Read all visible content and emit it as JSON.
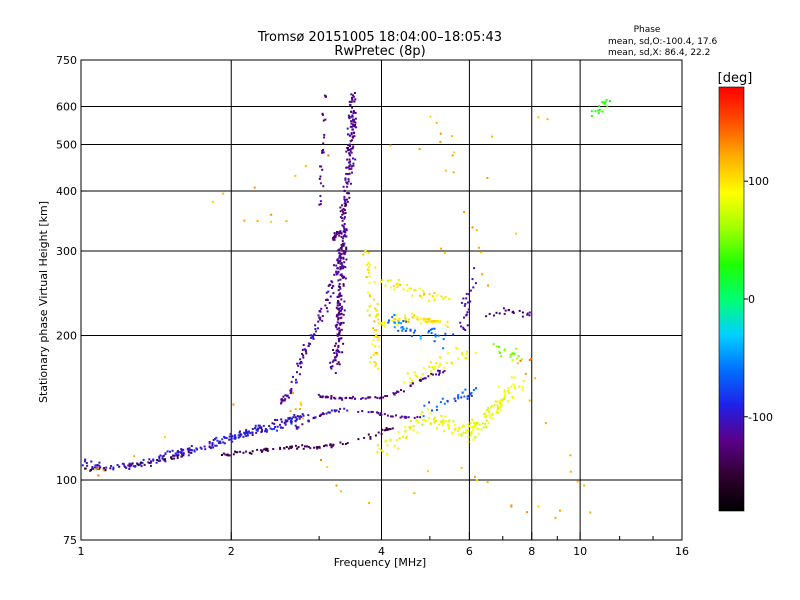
{
  "chart_data": {
    "type": "scatter",
    "title": "Tromsø 20151005 18:04:00–18:05:43",
    "subtitle": "RwPretec (8p)",
    "xlabel": "Frequency [MHz]",
    "ylabel": "Stationary phase Virtual Height [km]",
    "x_scale": "log",
    "y_scale": "log",
    "xlim": [
      1,
      16
    ],
    "ylim": [
      75,
      750
    ],
    "x_ticks": [
      1,
      2,
      4,
      6,
      8,
      10,
      16
    ],
    "x_minor": [
      3,
      5,
      7,
      9,
      12,
      14
    ],
    "x_gridlines": [
      2,
      4,
      6,
      8,
      10
    ],
    "y_ticks": [
      75,
      100,
      200,
      300,
      400,
      500,
      600,
      750
    ],
    "grid": true,
    "phase_info": {
      "title": "Phase",
      "line1": "mean, sd,O:-100.4, 17.6",
      "line2": "mean, sd,X:  86.4, 22.2"
    },
    "colorbar": {
      "label": "[deg]",
      "range": [
        -180,
        180
      ],
      "ticks": [
        100,
        0,
        -100
      ],
      "colors": [
        "#000000",
        "#300030",
        "#5a0088",
        "#2020e8",
        "#0070ff",
        "#00d0ff",
        "#00ff70",
        "#20ff00",
        "#a0ff00",
        "#ffff00",
        "#ffb000",
        "#ff5000",
        "#ff0000"
      ]
    },
    "series": [
      {
        "trace": [
          [
            1.0,
            110
          ],
          [
            1.1,
            106
          ],
          [
            1.2,
            106
          ],
          [
            1.3,
            108
          ],
          [
            1.4,
            110
          ],
          [
            1.5,
            113
          ],
          [
            1.6,
            114
          ],
          [
            1.7,
            116
          ],
          [
            1.8,
            118
          ],
          [
            1.9,
            120
          ],
          [
            2.0,
            122
          ],
          [
            2.1,
            125
          ],
          [
            2.2,
            127
          ],
          [
            2.4,
            130
          ],
          [
            2.6,
            133
          ],
          [
            2.8,
            136
          ]
        ],
        "phase": -100,
        "spread": 0.03,
        "count": 190
      },
      {
        "trace": [
          [
            1.0,
            106
          ],
          [
            1.05,
            104
          ],
          [
            1.1,
            106
          ],
          [
            1.2,
            106
          ],
          [
            1.3,
            108
          ],
          [
            1.5,
            111
          ],
          [
            1.7,
            114
          ]
        ],
        "phase": -140,
        "spread": 0.02,
        "count": 40
      },
      {
        "trace": [
          [
            1.9,
            113
          ],
          [
            2.1,
            114
          ],
          [
            2.3,
            115
          ],
          [
            2.6,
            117
          ],
          [
            2.8,
            117
          ],
          [
            3.0,
            117
          ],
          [
            3.2,
            118
          ],
          [
            3.5,
            120
          ],
          [
            3.8,
            123
          ],
          [
            4.0,
            126
          ],
          [
            4.2,
            128
          ]
        ],
        "phase": -140,
        "spread": 0.015,
        "count": 90
      },
      {
        "trace": [
          [
            1.8,
            120
          ],
          [
            2.0,
            123
          ],
          [
            2.3,
            126
          ],
          [
            2.6,
            130
          ],
          [
            2.8,
            135
          ]
        ],
        "phase": -95,
        "spread": 0.02,
        "count": 50
      },
      {
        "trace": [
          [
            2.7,
            128
          ],
          [
            2.9,
            134
          ],
          [
            3.1,
            138
          ],
          [
            3.3,
            140
          ],
          [
            3.6,
            139
          ],
          [
            3.9,
            138
          ],
          [
            4.2,
            136
          ],
          [
            4.5,
            135
          ],
          [
            4.8,
            135
          ]
        ],
        "phase": -110,
        "spread": 0.01,
        "count": 60
      },
      {
        "trace": [
          [
            2.5,
            145
          ],
          [
            2.6,
            150
          ],
          [
            2.7,
            165
          ],
          [
            2.8,
            185
          ],
          [
            2.9,
            200
          ],
          [
            3.0,
            215
          ],
          [
            3.1,
            235
          ],
          [
            3.2,
            260
          ],
          [
            3.3,
            300
          ]
        ],
        "phase": -110,
        "spread": 0.025,
        "count": 110
      },
      {
        "trace": [
          [
            3.0,
            150
          ],
          [
            3.1,
            149
          ],
          [
            3.3,
            148
          ],
          [
            3.6,
            148
          ],
          [
            3.9,
            148
          ],
          [
            4.2,
            150
          ],
          [
            4.6,
            158
          ],
          [
            5.0,
            165
          ],
          [
            5.5,
            170
          ]
        ],
        "phase": -120,
        "spread": 0.012,
        "count": 70
      },
      {
        "trace": [
          [
            3.2,
            170
          ],
          [
            3.3,
            200
          ],
          [
            3.3,
            250
          ],
          [
            3.35,
            300
          ],
          [
            3.35,
            350
          ],
          [
            3.4,
            400
          ],
          [
            3.45,
            450
          ],
          [
            3.45,
            500
          ],
          [
            3.5,
            550
          ],
          [
            3.5,
            600
          ],
          [
            3.5,
            650
          ]
        ],
        "phase": -120,
        "spread": 0.03,
        "count": 330
      },
      {
        "trace": [
          [
            3.3,
            330
          ],
          [
            3.2,
            318
          ],
          [
            3.25,
            330
          ]
        ],
        "phase": -125,
        "spread": 0.01,
        "count": 18
      },
      {
        "trace": [
          [
            3.0,
            370
          ],
          [
            3.05,
            450
          ],
          [
            3.05,
            550
          ],
          [
            3.1,
            650
          ]
        ],
        "phase": -120,
        "spread": 0.02,
        "count": 25
      },
      {
        "trace": [
          [
            3.7,
            300
          ],
          [
            3.8,
            280
          ],
          [
            3.8,
            250
          ],
          [
            3.9,
            220
          ],
          [
            3.9,
            185
          ],
          [
            3.9,
            160
          ]
        ],
        "phase": 100,
        "spread": 0.04,
        "count": 60
      },
      {
        "trace": [
          [
            4.0,
            260
          ],
          [
            4.3,
            255
          ],
          [
            4.6,
            250
          ],
          [
            5.0,
            240
          ],
          [
            5.4,
            240
          ]
        ],
        "phase": 95,
        "spread": 0.04,
        "count": 45
      },
      {
        "trace": [
          [
            4.0,
            210
          ],
          [
            4.5,
            218
          ],
          [
            5.0,
            215
          ],
          [
            5.5,
            212
          ]
        ],
        "phase": 100,
        "spread": 0.03,
        "count": 60
      },
      {
        "trace": [
          [
            4.0,
            115
          ],
          [
            4.5,
            128
          ],
          [
            5.0,
            135
          ],
          [
            5.5,
            130
          ],
          [
            6.0,
            125
          ],
          [
            6.5,
            135
          ],
          [
            7.0,
            150
          ],
          [
            7.5,
            160
          ]
        ],
        "phase": 85,
        "spread": 0.06,
        "count": 180
      },
      {
        "trace": [
          [
            4.2,
            215
          ],
          [
            4.5,
            205
          ],
          [
            5.0,
            200
          ],
          [
            5.5,
            195
          ]
        ],
        "phase": -60,
        "spread": 0.05,
        "count": 40
      },
      {
        "trace": [
          [
            4.5,
            160
          ],
          [
            5.0,
            170
          ],
          [
            5.5,
            180
          ],
          [
            6.0,
            185
          ]
        ],
        "phase": 90,
        "spread": 0.05,
        "count": 40
      },
      {
        "trace": [
          [
            4.8,
            140
          ],
          [
            5.2,
            145
          ],
          [
            5.8,
            150
          ],
          [
            6.3,
            155
          ]
        ],
        "phase": -70,
        "spread": 0.04,
        "count": 30
      },
      {
        "trace": [
          [
            5.8,
            200
          ],
          [
            5.9,
            230
          ],
          [
            6.0,
            250
          ],
          [
            6.2,
            280
          ]
        ],
        "phase": -110,
        "spread": 0.04,
        "count": 25
      },
      {
        "trace": [
          [
            6.5,
            220
          ],
          [
            7.0,
            225
          ],
          [
            7.5,
            225
          ],
          [
            8.0,
            220
          ]
        ],
        "phase": -130,
        "spread": 0.03,
        "count": 20
      },
      {
        "trace": [
          [
            6.8,
            190
          ],
          [
            7.2,
            185
          ],
          [
            7.8,
            175
          ]
        ],
        "phase": 50,
        "spread": 0.05,
        "count": 18
      },
      {
        "trace": [
          [
            10.5,
            580
          ],
          [
            11.0,
            600
          ],
          [
            11.5,
            620
          ]
        ],
        "phase": 30,
        "spread": 0.03,
        "count": 15
      },
      {
        "trace": [
          [
            1.0,
            100
          ],
          [
            1.3,
            115
          ],
          [
            1.8,
            140
          ],
          [
            2.5,
            160
          ],
          [
            3.5,
            90
          ],
          [
            4.5,
            90
          ],
          [
            5.5,
            110
          ],
          [
            6.5,
            100
          ],
          [
            7.5,
            90
          ],
          [
            10.5,
            80
          ],
          [
            5.0,
            560
          ],
          [
            6.5,
            430
          ],
          [
            7.5,
            300
          ],
          [
            5.2,
            300
          ],
          [
            4.6,
            360
          ],
          [
            1.6,
            350
          ],
          [
            2.8,
            450
          ],
          [
            8.5,
            560
          ],
          [
            7.0,
            520
          ]
        ],
        "phase": 120,
        "spread": 0.06,
        "count": 80
      }
    ]
  }
}
